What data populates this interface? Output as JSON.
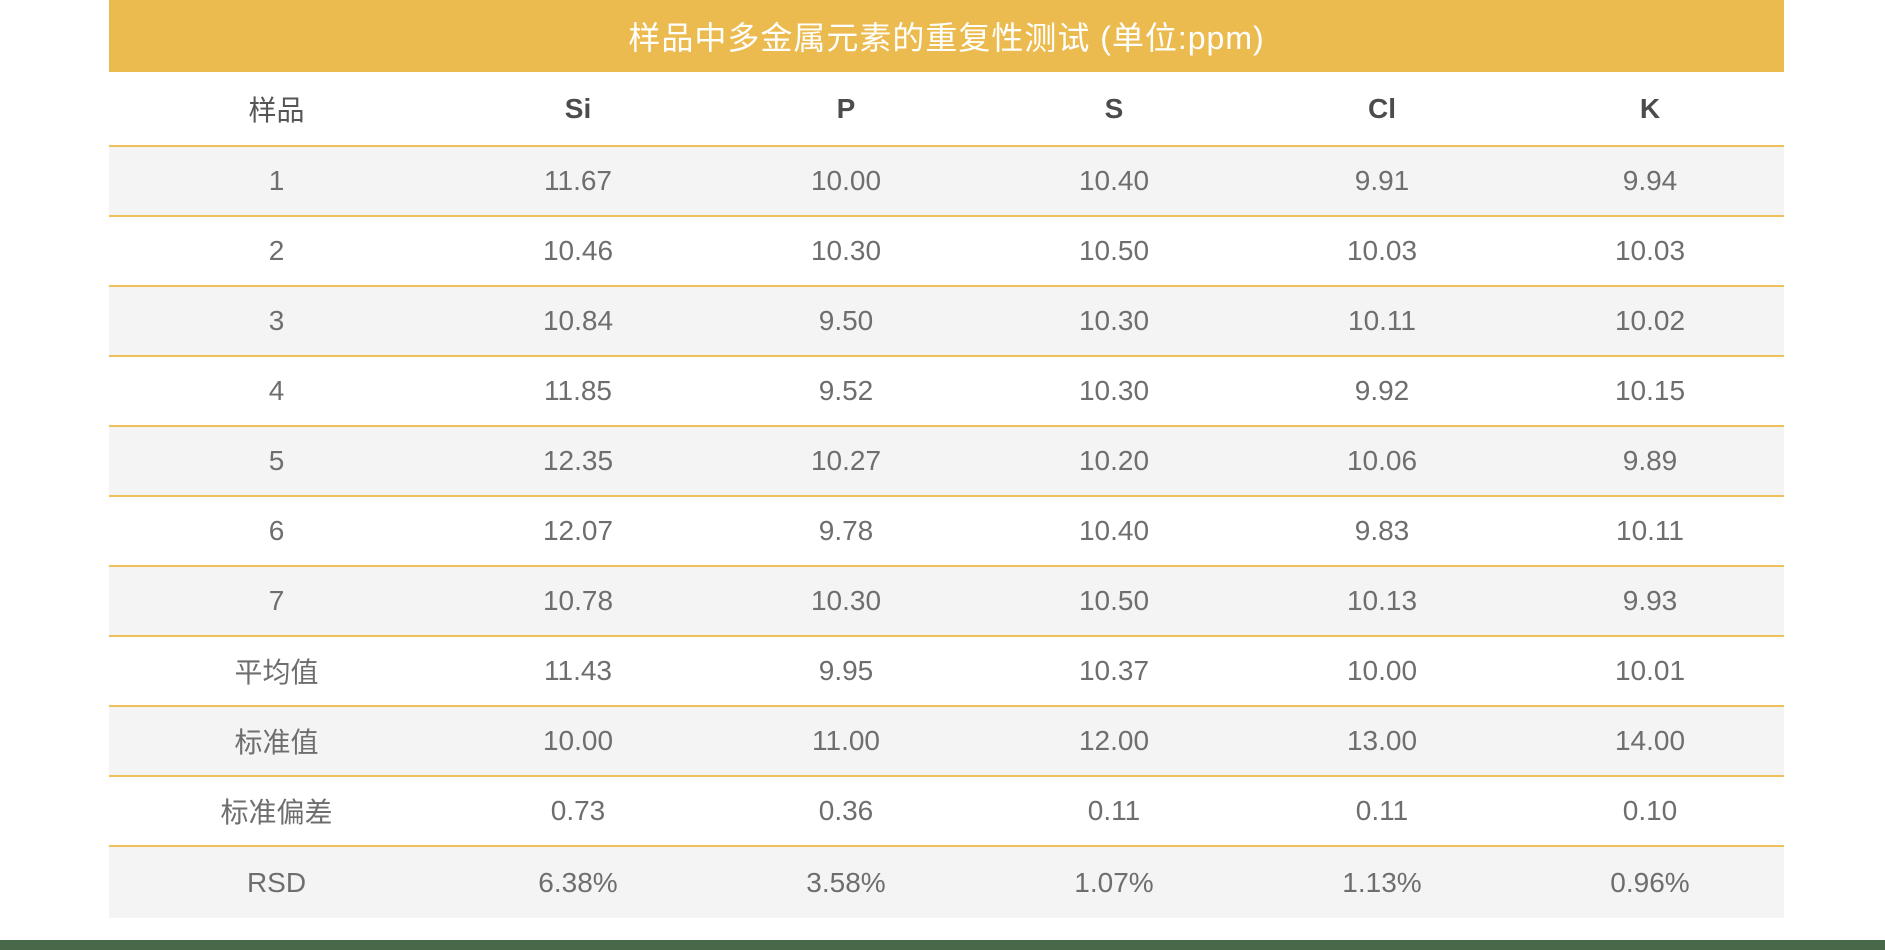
{
  "chart_data": {
    "type": "table",
    "title": "样品中多金属元素的重复性测试 (单位:ppm)",
    "unit": "ppm",
    "columns": [
      "样品",
      "Si",
      "P",
      "S",
      "Cl",
      "K"
    ],
    "rows": [
      [
        "1",
        "11.67",
        "10.00",
        "10.40",
        "9.91",
        "9.94"
      ],
      [
        "2",
        "10.46",
        "10.30",
        "10.50",
        "10.03",
        "10.03"
      ],
      [
        "3",
        "10.84",
        "9.50",
        "10.30",
        "10.11",
        "10.02"
      ],
      [
        "4",
        "11.85",
        "9.52",
        "10.30",
        "9.92",
        "10.15"
      ],
      [
        "5",
        "12.35",
        "10.27",
        "10.20",
        "10.06",
        "9.89"
      ],
      [
        "6",
        "12.07",
        "9.78",
        "10.40",
        "9.83",
        "10.11"
      ],
      [
        "7",
        "10.78",
        "10.30",
        "10.50",
        "10.13",
        "9.93"
      ],
      [
        "平均值",
        "11.43",
        "9.95",
        "10.37",
        "10.00",
        "10.01"
      ],
      [
        "标准值",
        "10.00",
        "11.00",
        "12.00",
        "13.00",
        "14.00"
      ],
      [
        "标准偏差",
        "0.73",
        "0.36",
        "0.11",
        "0.11",
        "0.10"
      ],
      [
        "RSD",
        "6.38%",
        "3.58%",
        "1.07%",
        "1.13%",
        "0.96%"
      ]
    ]
  },
  "colors": {
    "accent_gold": "#ECBB4F",
    "divider_gold": "#EDC05A",
    "row_stripe_gray": "#F4F4F4",
    "bottom_bar_green": "#47694A"
  }
}
